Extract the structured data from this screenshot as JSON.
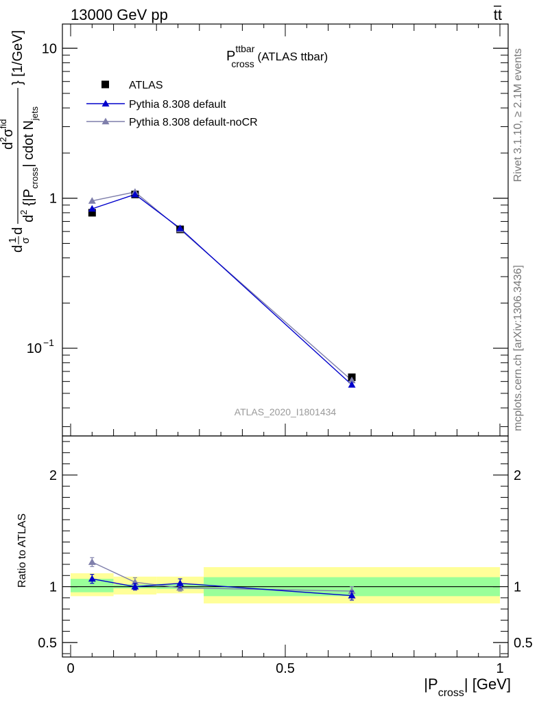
{
  "header": {
    "energy_label": "13000 GeV pp",
    "process_main": "tt",
    "process_bar": "̅"
  },
  "side_text": {
    "rivet": "Rivet 3.1.10, ≥ 2.1M events",
    "mcplots": "mcplots.cern.ch [arXiv:1306.3436]"
  },
  "title": {
    "main": "P",
    "sup": "ttbar",
    "sub": "cross",
    "suffix": " (ATLAS ttbar)"
  },
  "analysis_id": "ATLAS_2020_I1801434",
  "y_label_main": {
    "part1": "d",
    "frac1_num": "1",
    "frac1_den": "σ",
    "part2": "d",
    "num_d2": "d",
    "num_exp": "2",
    "num_sigma": "σ",
    "num_fid": "fid",
    "den_text": "d",
    "den_exp": "2",
    "den_rest1": " {|P",
    "den_sub1": "cross",
    "den_rest2": "| cdot N",
    "den_sub2": "jets",
    "tail": "} [1/GeV]"
  },
  "x_label": {
    "pre": "|P",
    "sub": "cross",
    "post": "| [GeV]"
  },
  "ratio_y_label": "Ratio to ATLAS",
  "colors": {
    "data": "#000000",
    "default": "#0000cc",
    "noCR": "#7f7fab",
    "band_inner": "#99ff99",
    "band_outer": "#ffff99"
  },
  "chart_data": {
    "type": "line",
    "x_range": [
      0,
      1
    ],
    "main": {
      "y_scale": "log",
      "ylim": [
        0.026,
        14.5
      ],
      "y_ticks": [
        {
          "value": 10,
          "label": "10"
        },
        {
          "value": 1,
          "label": "1"
        },
        {
          "value": 0.1,
          "label": "10",
          "exp": "−1"
        }
      ]
    },
    "ratio": {
      "ylim": [
        0.37,
        2.35
      ],
      "y_ticks": [
        {
          "value": 2,
          "label": "2"
        },
        {
          "value": 1,
          "label": "1"
        },
        {
          "value": 0.5,
          "label": "0.5"
        }
      ]
    },
    "x_ticks": [
      {
        "value": 0,
        "label": "0"
      },
      {
        "value": 0.5,
        "label": "0.5"
      },
      {
        "value": 1,
        "label": "1"
      }
    ],
    "bins": [
      {
        "low": 0.0,
        "high": 0.1
      },
      {
        "low": 0.1,
        "high": 0.2
      },
      {
        "low": 0.2,
        "high": 0.31
      },
      {
        "low": 0.31,
        "high": 1.0
      }
    ],
    "legend_position": "top-left",
    "series": [
      {
        "name": "ATLAS",
        "key": "data",
        "marker": "square",
        "x": [
          0.05,
          0.15,
          0.255,
          0.655
        ],
        "y": [
          0.8,
          1.06,
          0.62,
          0.064
        ],
        "ratio": [
          1.0,
          1.0,
          1.0,
          1.0
        ],
        "band_inner": [
          [
            0.95,
            1.07
          ],
          [
            0.985,
            1.02
          ],
          [
            0.98,
            1.025
          ],
          [
            0.915,
            1.085
          ]
        ],
        "band_outer": [
          [
            0.915,
            1.12
          ],
          [
            0.93,
            1.09
          ],
          [
            0.94,
            1.09
          ],
          [
            0.85,
            1.175
          ]
        ]
      },
      {
        "name": "Pythia 8.308 default",
        "key": "default",
        "marker": "triangle",
        "x": [
          0.05,
          0.15,
          0.255,
          0.655
        ],
        "y": [
          0.85,
          1.06,
          0.63,
          0.057
        ],
        "ratio": [
          1.07,
          1.0,
          1.03,
          0.92
        ],
        "ratio_err": [
          0.04,
          0.03,
          0.04,
          0.04
        ]
      },
      {
        "name": "Pythia 8.308 default-noCR",
        "key": "noCR",
        "marker": "triangle",
        "x": [
          0.05,
          0.15,
          0.255,
          0.655
        ],
        "y": [
          0.96,
          1.1,
          0.62,
          0.061
        ],
        "ratio": [
          1.22,
          1.04,
          0.99,
          0.96
        ],
        "ratio_err": [
          0.04,
          0.04,
          0.03,
          0.04
        ]
      }
    ]
  }
}
